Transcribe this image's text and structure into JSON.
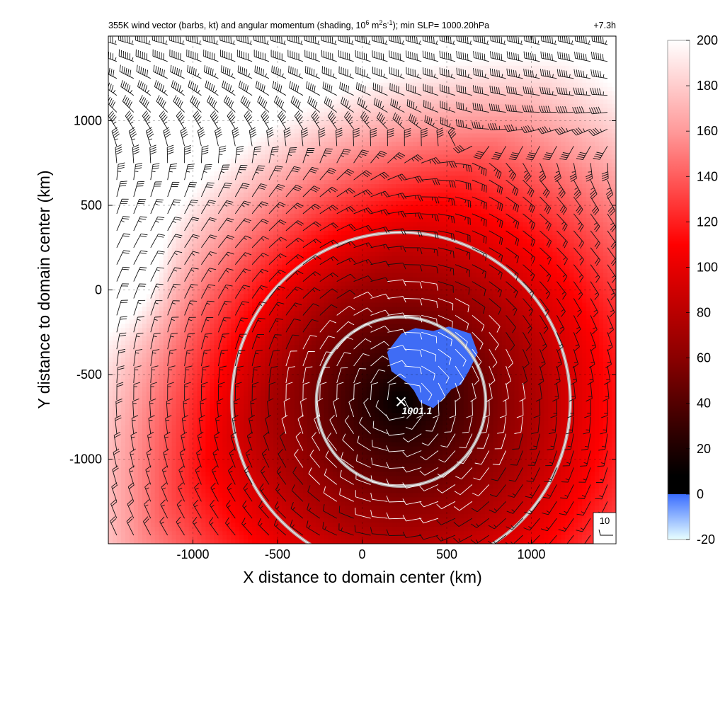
{
  "chart_data": {
    "type": "heatmap",
    "title": "355K wind vector (barbs, kt) and angular momentum (shading, 10",
    "title_sup1": "6",
    "title_mid": " m",
    "title_sup2": "2",
    "title_mid2": "s",
    "title_sup3": "-1",
    "title_end": "); min SLP= 1000.20hPa",
    "time_label": "+7.3h",
    "xlabel": "X distance to domain center (km)",
    "ylabel": "Y distance to domain center (km)",
    "xlim": [
      -1500,
      1500
    ],
    "ylim": [
      -1500,
      1500
    ],
    "x_ticks": [
      -1000,
      -500,
      0,
      500,
      1000
    ],
    "y_ticks": [
      1000,
      500,
      0,
      -500,
      -1000
    ],
    "x_tick_labels": [
      "-1000",
      "-500",
      "0",
      "500",
      "1000"
    ],
    "y_tick_labels": [
      "1000",
      "500",
      "0",
      "-500",
      "-1000"
    ],
    "grid": true,
    "colorbar": {
      "ticks": [
        200,
        180,
        160,
        140,
        120,
        100,
        80,
        60,
        40,
        20,
        0,
        -20
      ],
      "tick_labels": [
        "200",
        "180",
        "160",
        "140",
        "120",
        "100",
        "80",
        "60",
        "40",
        "20",
        "0",
        "-20"
      ],
      "range": [
        -20,
        200
      ],
      "stops": [
        {
          "value": 200,
          "color": "#ffffff"
        },
        {
          "value": 160,
          "color": "#ff9a9a"
        },
        {
          "value": 110,
          "color": "#ff0000"
        },
        {
          "value": 60,
          "color": "#8a0000"
        },
        {
          "value": 25,
          "color": "#2a0000"
        },
        {
          "value": 8,
          "color": "#000000"
        },
        {
          "value": 0,
          "color": "#3a6dff"
        },
        {
          "value": -20,
          "color": "#e8ffff"
        }
      ]
    },
    "storm_center": {
      "x": 230,
      "y": -660,
      "label": "1001.1"
    },
    "radius_circles_km": [
      500,
      1000
    ],
    "negative_region_center": {
      "x": 420,
      "y": -480
    },
    "wind_reference": {
      "label": "10",
      "value_kt": 10
    },
    "barb_spacing_km": 100
  }
}
